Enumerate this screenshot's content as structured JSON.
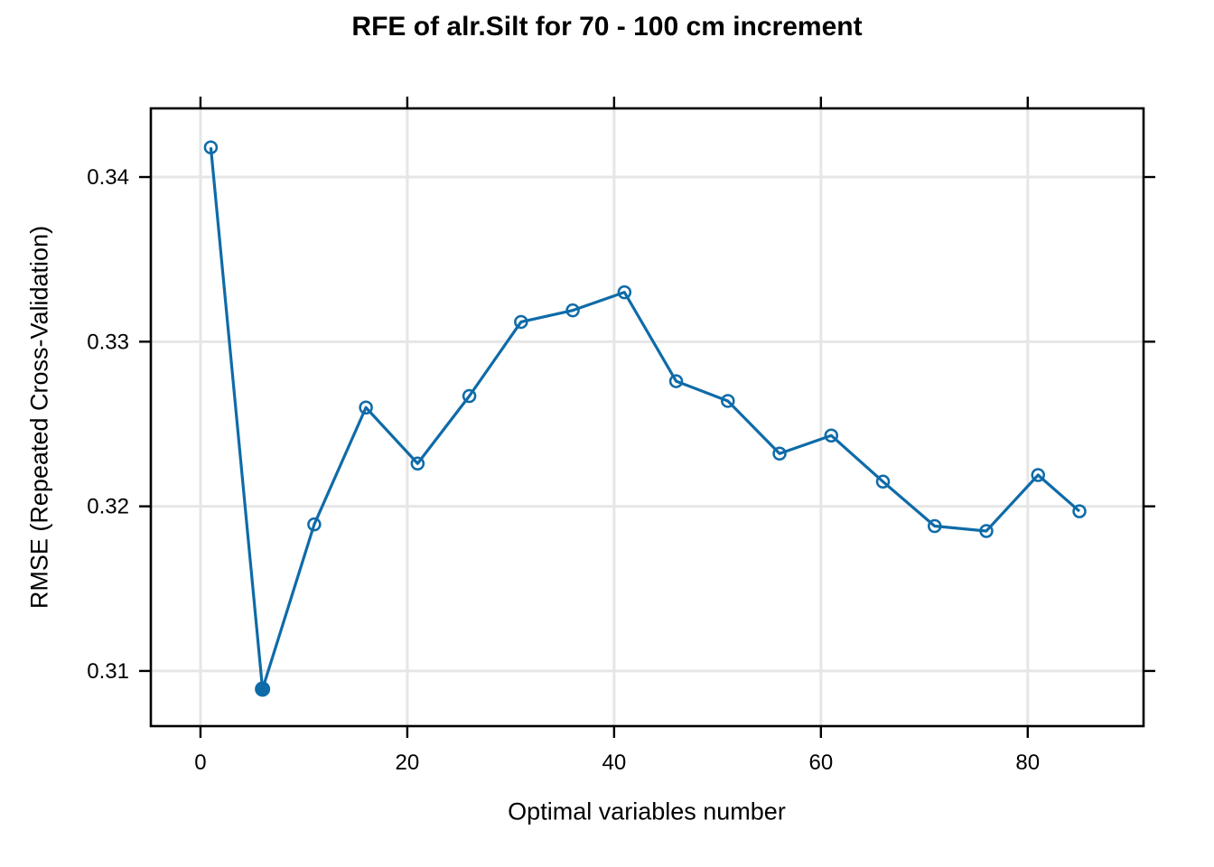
{
  "page": {
    "background": "#ffffff"
  },
  "chart_data": {
    "type": "line",
    "title": "RFE of alr.Silt for 70 - 100 cm increment",
    "xlabel": "Optimal variables number",
    "ylabel": "RMSE (Repeated Cross-Validation)",
    "x": [
      1,
      6,
      11,
      16,
      21,
      26,
      31,
      36,
      41,
      46,
      51,
      56,
      61,
      66,
      71,
      76,
      81,
      85
    ],
    "y": [
      0.3418,
      0.3089,
      0.3189,
      0.326,
      0.3226,
      0.3267,
      0.3312,
      0.3319,
      0.333,
      0.3276,
      0.3264,
      0.3232,
      0.3243,
      0.3215,
      0.3188,
      0.3185,
      0.3219,
      0.3197
    ],
    "best_point": {
      "x": 6,
      "y": 0.3089
    },
    "x_ticks": [
      0,
      20,
      40,
      60,
      80
    ],
    "y_ticks": [
      0.31,
      0.32,
      0.33,
      0.34
    ],
    "y_tick_decimals": 2,
    "xlim": [
      -4.8,
      91.2
    ],
    "ylim": [
      0.30665,
      0.34417
    ],
    "grid": true,
    "legend": "none",
    "marker": "open-circle",
    "best_marker": "filled-circle",
    "line_color": "#0e6ba8",
    "grid_color": "#e6e6e6",
    "axis_color": "#000000",
    "text_color": "#000000"
  }
}
